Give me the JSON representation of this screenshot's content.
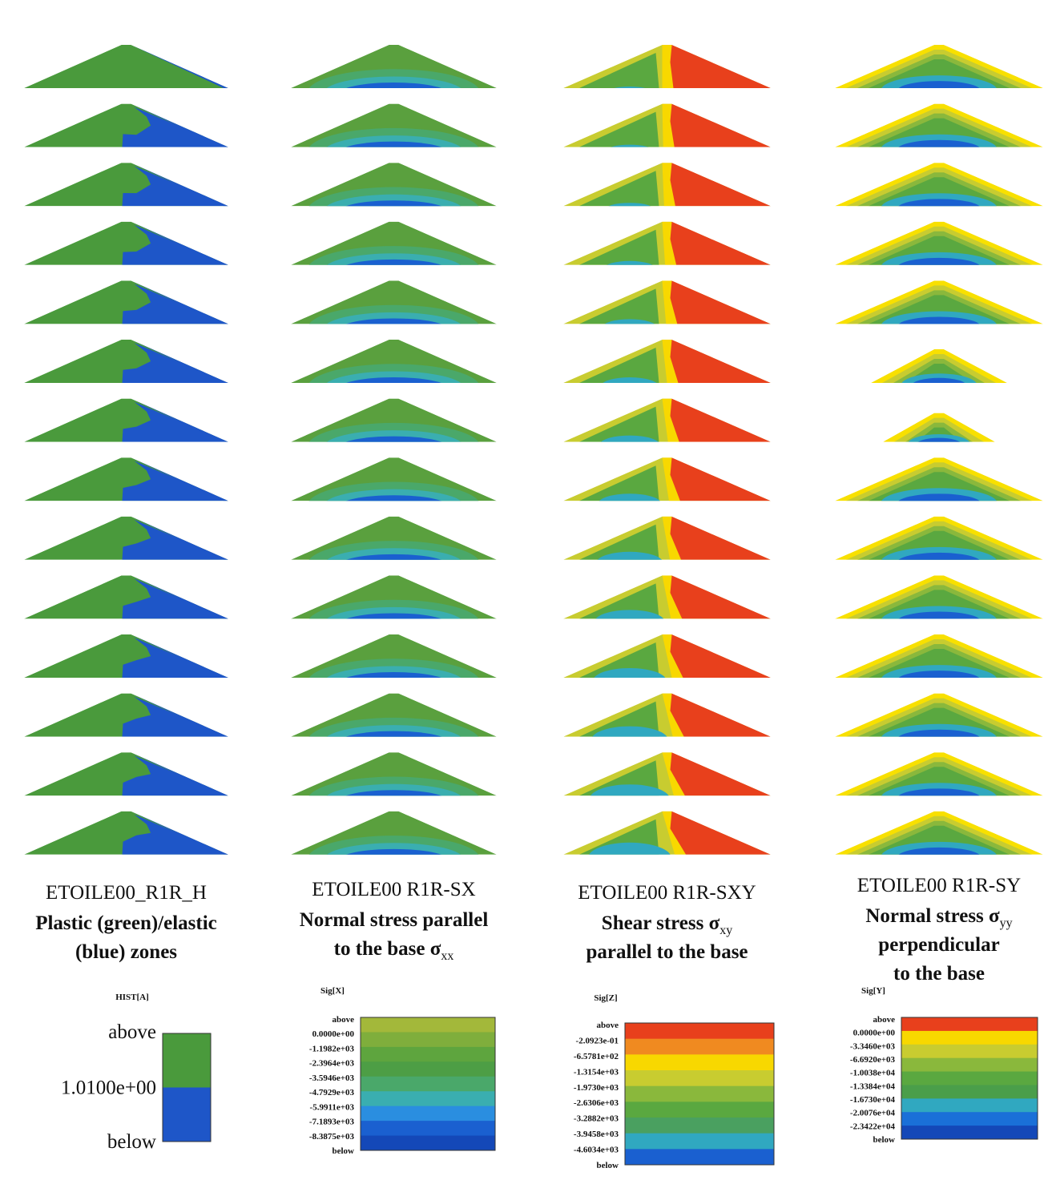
{
  "panels": [
    {
      "title": "ETOILE00_R1R_H",
      "caption": [
        {
          "text": "Plastic (green)/elastic"
        },
        {
          "text": "(blue) zones"
        }
      ],
      "legend": {
        "title": "HIST[A]",
        "labels": [
          "above",
          "1.0100e+00",
          "below"
        ],
        "colors": [
          "#4a9a3c",
          "#1e56c8"
        ]
      }
    },
    {
      "title": "ETOILE00 R1R-SX",
      "caption": [
        {
          "text": "Normal stress parallel"
        },
        {
          "text": "to the base σ",
          "sub": "xx"
        }
      ],
      "legend": {
        "title": "Sig[X]",
        "labels": [
          "above",
          "0.0000e+00",
          "-1.1982e+03",
          "-2.3964e+03",
          "-3.5946e+03",
          "-4.7929e+03",
          "-5.9911e+03",
          "-7.1893e+03",
          "-8.3875e+03",
          "below"
        ],
        "colors": [
          "#a3b83a",
          "#7fae3c",
          "#5ea53e",
          "#4d9e45",
          "#4aa86a",
          "#3aaeb0",
          "#2a8ee0",
          "#1a60d0",
          "#1448b8"
        ]
      }
    },
    {
      "title": "ETOILE00 R1R-SXY",
      "caption": [
        {
          "text": "Shear stress σ",
          "sub": "xy"
        },
        {
          "text": "parallel to the base"
        }
      ],
      "legend": {
        "title": "Sig[Z]",
        "labels": [
          "above",
          "-2.0923e-01",
          "-6.5781e+02",
          "-1.3154e+03",
          "-1.9730e+03",
          "-2.6306e+03",
          "-3.2882e+03",
          "-3.9458e+03",
          "-4.6034e+03",
          "below"
        ],
        "colors": [
          "#e8401c",
          "#f08a20",
          "#f8d800",
          "#c8cc30",
          "#8ab83c",
          "#5aa840",
          "#4aa060",
          "#30a8c0",
          "#1a60d0"
        ]
      }
    },
    {
      "title": "ETOILE00 R1R-SY",
      "caption": [
        {
          "text": "Normal stress σ",
          "sub": "yy"
        },
        {
          "text": "perpendicular"
        },
        {
          "text": "to the base"
        }
      ],
      "legend": {
        "title": "Sig[Y]",
        "labels": [
          "above",
          "0.0000e+00",
          "-3.3460e+03",
          "-6.6920e+03",
          "-1.0038e+04",
          "-1.3384e+04",
          "-1.6730e+04",
          "-2.0076e+04",
          "-2.3422e+04",
          "below"
        ],
        "colors": [
          "#e8401c",
          "#f8d800",
          "#c8cc30",
          "#8ab83c",
          "#5aa840",
          "#4a9e4a",
          "#30a8c0",
          "#1a70d8",
          "#1448b8"
        ]
      }
    }
  ]
}
